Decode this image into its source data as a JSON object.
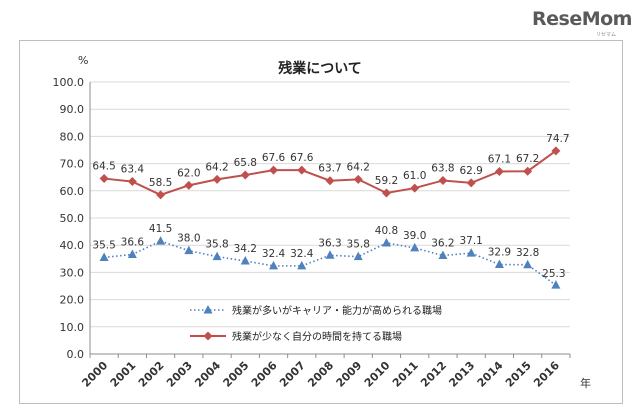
{
  "logo": {
    "text": "ReseMom",
    "sub": "リセマム"
  },
  "chart_data": {
    "type": "line",
    "title": "残業について",
    "ylabel": "%",
    "xlabel": "年",
    "ylim": [
      0,
      100
    ],
    "yticks": [
      "0.0",
      "10.0",
      "20.0",
      "30.0",
      "40.0",
      "50.0",
      "60.0",
      "70.0",
      "80.0",
      "90.0",
      "100.0"
    ],
    "categories": [
      "2000",
      "2001",
      "2002",
      "2003",
      "2004",
      "2005",
      "2006",
      "2007",
      "2008",
      "2009",
      "2010",
      "2011",
      "2012",
      "2013",
      "2014",
      "2015",
      "2016"
    ],
    "grid": true,
    "legend_position": "bottom-center",
    "series": [
      {
        "name": "残業が多いがキャリア・能力が高められる職場",
        "color": "#4f81bd",
        "marker": "triangle",
        "line_style": "dotted",
        "values": [
          35.5,
          36.6,
          41.5,
          38.0,
          35.8,
          34.2,
          32.4,
          32.4,
          36.3,
          35.8,
          40.8,
          39.0,
          36.2,
          37.1,
          32.9,
          32.8,
          25.3
        ],
        "labels": [
          "35.5",
          "36.6",
          "41.5",
          "38.0",
          "35.8",
          "34.2",
          "32.4",
          "32.4",
          "36.3",
          "35.8",
          "40.8",
          "39.0",
          "36.2",
          "37.1",
          "32.9",
          "32.8",
          "25.3"
        ]
      },
      {
        "name": "残業が少なく自分の時間を持てる職場",
        "color": "#c0504d",
        "marker": "diamond",
        "line_style": "solid",
        "values": [
          64.5,
          63.4,
          58.5,
          62.0,
          64.2,
          65.8,
          67.6,
          67.6,
          63.7,
          64.2,
          59.2,
          61.0,
          63.8,
          62.9,
          67.1,
          67.2,
          74.7
        ],
        "labels": [
          "64.5",
          "63.4",
          "58.5",
          "62.0",
          "64.2",
          "65.8",
          "67.6",
          "67.6",
          "63.7",
          "64.2",
          "59.2",
          "61.0",
          "63.8",
          "62.9",
          "67.1",
          "67.2",
          "74.7"
        ]
      }
    ]
  }
}
